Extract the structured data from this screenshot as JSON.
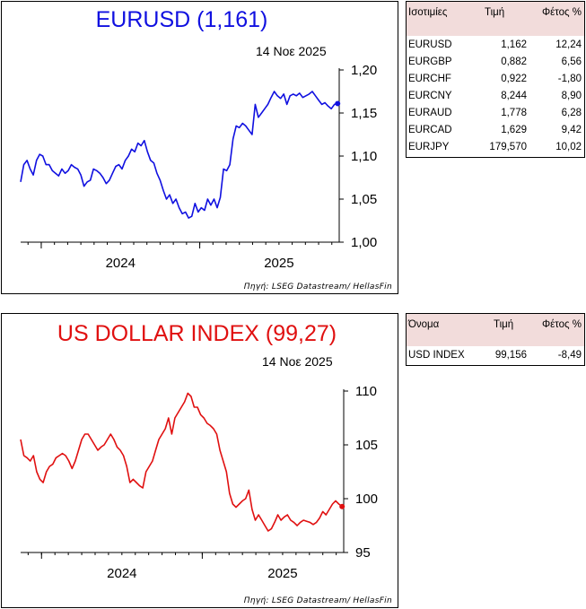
{
  "chart_data": [
    {
      "type": "line",
      "title": "EURUSD (1,161)",
      "date": "14 Νοε 2025",
      "source": "Πηγή: LSEG Datastream/ HellasFin",
      "color": "#1010e0",
      "ylim": [
        1.0,
        1.2
      ],
      "yticks": [
        "1,00",
        "1,05",
        "1,10",
        "1,15",
        "1,20"
      ],
      "ytick_values": [
        1.0,
        1.05,
        1.1,
        1.15,
        1.2
      ],
      "xlabels": [
        "2024",
        "2025"
      ],
      "xlim": [
        2023.87,
        2025.88
      ],
      "grid": false,
      "series": [
        {
          "x": [
            2023.87,
            2023.89,
            2023.91,
            2023.93,
            2023.95,
            2023.97,
            2023.99,
            2024.01,
            2024.03,
            2024.05,
            2024.07,
            2024.09,
            2024.11,
            2024.13,
            2024.15,
            2024.17,
            2024.19,
            2024.21,
            2024.23,
            2024.25,
            2024.27,
            2024.29,
            2024.31,
            2024.33,
            2024.35,
            2024.37,
            2024.39,
            2024.41,
            2024.43,
            2024.45,
            2024.47,
            2024.49,
            2024.51,
            2024.53,
            2024.55,
            2024.57,
            2024.59,
            2024.61,
            2024.63,
            2024.65,
            2024.67,
            2024.69,
            2024.71,
            2024.73,
            2024.75,
            2024.77,
            2024.79,
            2024.81,
            2024.83,
            2024.85,
            2024.87,
            2024.89,
            2024.91,
            2024.93,
            2024.95,
            2024.97,
            2024.99,
            2025.01,
            2025.03,
            2025.05,
            2025.07,
            2025.09,
            2025.11,
            2025.13,
            2025.15,
            2025.17,
            2025.19,
            2025.21,
            2025.23,
            2025.25,
            2025.27,
            2025.29,
            2025.31,
            2025.33,
            2025.35,
            2025.37,
            2025.39,
            2025.41,
            2025.43,
            2025.45,
            2025.47,
            2025.49,
            2025.51,
            2025.53,
            2025.55,
            2025.57,
            2025.59,
            2025.61,
            2025.63,
            2025.65,
            2025.67,
            2025.69,
            2025.71,
            2025.73,
            2025.75,
            2025.77,
            2025.79,
            2025.81,
            2025.83,
            2025.85,
            2025.87
          ],
          "y": [
            1.07,
            1.09,
            1.095,
            1.085,
            1.078,
            1.095,
            1.102,
            1.1,
            1.09,
            1.09,
            1.083,
            1.08,
            1.077,
            1.085,
            1.08,
            1.083,
            1.09,
            1.087,
            1.085,
            1.078,
            1.065,
            1.07,
            1.072,
            1.085,
            1.083,
            1.08,
            1.075,
            1.068,
            1.072,
            1.08,
            1.088,
            1.09,
            1.085,
            1.095,
            1.1,
            1.108,
            1.105,
            1.115,
            1.112,
            1.118,
            1.105,
            1.095,
            1.092,
            1.08,
            1.072,
            1.06,
            1.05,
            1.055,
            1.045,
            1.05,
            1.04,
            1.033,
            1.035,
            1.028,
            1.03,
            1.045,
            1.035,
            1.04,
            1.037,
            1.05,
            1.043,
            1.05,
            1.04,
            1.052,
            1.085,
            1.083,
            1.09,
            1.12,
            1.135,
            1.133,
            1.138,
            1.135,
            1.13,
            1.125,
            1.16,
            1.145,
            1.15,
            1.155,
            1.16,
            1.168,
            1.175,
            1.17,
            1.167,
            1.172,
            1.16,
            1.17,
            1.172,
            1.17,
            1.173,
            1.168,
            1.17,
            1.172,
            1.175,
            1.17,
            1.165,
            1.16,
            1.162,
            1.158,
            1.155,
            1.16,
            1.161
          ]
        }
      ]
    },
    {
      "type": "line",
      "title": "US DOLLAR INDEX (99,27)",
      "date": "14 Νοε 2025",
      "source": "Πηγή: LSEG Datastream/ HellasFin",
      "color": "#e01010",
      "ylim": [
        95,
        110
      ],
      "yticks": [
        "95",
        "100",
        "105",
        "110"
      ],
      "ytick_values": [
        95,
        100,
        105,
        110
      ],
      "xlabels": [
        "2024",
        "2025"
      ],
      "xlim": [
        2023.87,
        2025.88
      ],
      "grid": false,
      "series": [
        {
          "x": [
            2023.87,
            2023.89,
            2023.91,
            2023.93,
            2023.95,
            2023.97,
            2023.99,
            2024.01,
            2024.03,
            2024.05,
            2024.07,
            2024.09,
            2024.11,
            2024.13,
            2024.15,
            2024.17,
            2024.19,
            2024.21,
            2024.23,
            2024.25,
            2024.27,
            2024.29,
            2024.31,
            2024.33,
            2024.35,
            2024.37,
            2024.39,
            2024.41,
            2024.43,
            2024.45,
            2024.47,
            2024.49,
            2024.51,
            2024.53,
            2024.55,
            2024.57,
            2024.59,
            2024.61,
            2024.63,
            2024.65,
            2024.67,
            2024.69,
            2024.71,
            2024.73,
            2024.75,
            2024.77,
            2024.79,
            2024.81,
            2024.83,
            2024.85,
            2024.87,
            2024.89,
            2024.91,
            2024.93,
            2024.95,
            2024.97,
            2024.99,
            2025.01,
            2025.03,
            2025.05,
            2025.07,
            2025.09,
            2025.11,
            2025.13,
            2025.15,
            2025.17,
            2025.19,
            2025.21,
            2025.23,
            2025.25,
            2025.27,
            2025.29,
            2025.31,
            2025.33,
            2025.35,
            2025.37,
            2025.39,
            2025.41,
            2025.43,
            2025.45,
            2025.47,
            2025.49,
            2025.51,
            2025.53,
            2025.55,
            2025.57,
            2025.59,
            2025.61,
            2025.63,
            2025.65,
            2025.67,
            2025.69,
            2025.71,
            2025.73,
            2025.75,
            2025.77,
            2025.79,
            2025.81,
            2025.83,
            2025.85,
            2025.87
          ],
          "y": [
            105.5,
            104,
            103.8,
            103.5,
            104,
            102.5,
            101.8,
            101.5,
            102.5,
            103,
            103.2,
            103.8,
            104,
            104.2,
            104,
            103.5,
            102.8,
            103.5,
            104.5,
            105.5,
            106,
            106,
            105.5,
            105,
            104.5,
            104.8,
            105,
            105.5,
            106,
            105.5,
            104.8,
            104.5,
            104,
            103,
            101.5,
            101.8,
            101.5,
            101.2,
            101,
            102.5,
            103,
            103.5,
            104.5,
            105.5,
            106,
            106.5,
            107.5,
            106,
            107.5,
            108,
            108.5,
            109,
            109.8,
            109.5,
            108.5,
            108.5,
            107.8,
            107.5,
            107,
            106.8,
            106.5,
            106,
            104.5,
            103.5,
            102.5,
            100.5,
            99.5,
            99.2,
            99.5,
            99.8,
            100,
            100.8,
            99,
            98,
            98.5,
            98,
            97.5,
            97,
            97.2,
            97.8,
            98.5,
            98,
            98.3,
            98.5,
            98,
            97.8,
            97.5,
            97.8,
            98,
            97.9,
            97.8,
            97.6,
            97.8,
            98.2,
            98.8,
            98.5,
            99,
            99.5,
            99.8,
            99.5,
            99.27
          ]
        }
      ]
    }
  ],
  "eur_table": {
    "headers": [
      "Ισοτιμίες",
      "Τιμή",
      "Φέτος %"
    ],
    "rows": [
      [
        "EURUSD",
        "1,162",
        "12,24"
      ],
      [
        "EURGBP",
        "0,882",
        "6,56"
      ],
      [
        "EURCHF",
        "0,922",
        "-1,80"
      ],
      [
        "EURCNY",
        "8,244",
        "8,90"
      ],
      [
        "EURAUD",
        "1,778",
        "6,28"
      ],
      [
        "EURCAD",
        "1,629",
        "9,42"
      ],
      [
        "EURJPY",
        "179,570",
        "10,02"
      ]
    ]
  },
  "usd_table": {
    "headers": [
      "Όνομα",
      "Τιμή",
      "Φέτος %"
    ],
    "rows": [
      [
        "USD INDEX",
        "99,156",
        "-8,49"
      ]
    ]
  }
}
